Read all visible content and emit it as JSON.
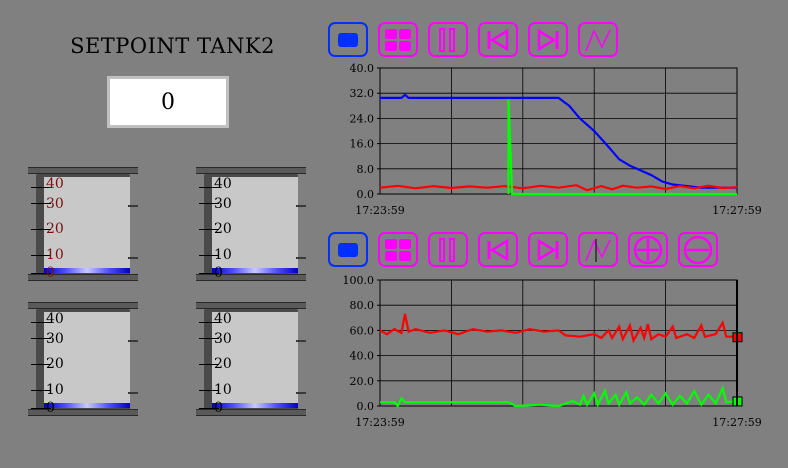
{
  "setpoint": {
    "title": "SETPOINT TANK2",
    "value": "0"
  },
  "tanks": [
    {
      "scale": [
        "40",
        "30",
        "20",
        "10",
        "0"
      ],
      "level": 0
    },
    {
      "scale": [
        "40",
        "30",
        "20",
        "10",
        "0"
      ],
      "level": 0
    },
    {
      "scale": [
        "40",
        "30",
        "20",
        "10",
        "0"
      ],
      "level": 0
    },
    {
      "scale": [
        "40",
        "30",
        "20",
        "10",
        "0"
      ],
      "level": 0
    }
  ],
  "toolbar1": {
    "buttons": [
      "stop-icon",
      "grid-icon",
      "pause-icon",
      "rewind-icon",
      "forward-icon",
      "wave-icon"
    ]
  },
  "toolbar2": {
    "buttons": [
      "stop-icon",
      "grid-icon",
      "pause-icon",
      "rewind-icon",
      "forward-icon",
      "cursor-wave-icon",
      "zoom-in-icon",
      "zoom-out-icon"
    ]
  },
  "colors": {
    "blue": "#0000ff",
    "red": "#ff0000",
    "green": "#00ff00",
    "magenta": "#ff00ff"
  },
  "chart_data": [
    {
      "type": "line",
      "ylim": [
        0,
        40
      ],
      "yticks": [
        "40.0",
        "32.0",
        "24.0",
        "16.0",
        "8.0",
        "0.0"
      ],
      "x_start": "17:23:59",
      "x_end": "17:27:59",
      "grid": true,
      "series": [
        {
          "color": "#0000ff",
          "points": [
            [
              0,
              30.5
            ],
            [
              6,
              30.5
            ],
            [
              7,
              31.5
            ],
            [
              8,
              30.5
            ],
            [
              50,
              30.5
            ],
            [
              53,
              28
            ],
            [
              56,
              24
            ],
            [
              60,
              20
            ],
            [
              64,
              15
            ],
            [
              67,
              11
            ],
            [
              70,
              9
            ],
            [
              73,
              7.5
            ],
            [
              76,
              6
            ],
            [
              79,
              4
            ],
            [
              82,
              3
            ],
            [
              86,
              2.5
            ],
            [
              90,
              2
            ],
            [
              100,
              2
            ]
          ]
        },
        {
          "color": "#ff0000",
          "points": [
            [
              0,
              2
            ],
            [
              5,
              2.6
            ],
            [
              10,
              1.8
            ],
            [
              15,
              2.5
            ],
            [
              20,
              1.9
            ],
            [
              25,
              2.4
            ],
            [
              30,
              2
            ],
            [
              35,
              2.5
            ],
            [
              40,
              1.8
            ],
            [
              45,
              2.6
            ],
            [
              50,
              2
            ],
            [
              55,
              2.8
            ],
            [
              58,
              1.2
            ],
            [
              62,
              2.5
            ],
            [
              65,
              1.5
            ],
            [
              68,
              2.6
            ],
            [
              72,
              2
            ],
            [
              76,
              2.4
            ],
            [
              80,
              1.6
            ],
            [
              84,
              2.5
            ],
            [
              88,
              1.8
            ],
            [
              92,
              2.6
            ],
            [
              96,
              1.9
            ],
            [
              100,
              2.2
            ]
          ]
        },
        {
          "color": "#00ff00",
          "points": [
            [
              36,
              0
            ],
            [
              36,
              30
            ],
            [
              37,
              0
            ],
            [
              100,
              0
            ]
          ]
        }
      ]
    },
    {
      "type": "line",
      "ylim": [
        0,
        100
      ],
      "yticks": [
        "100.0",
        "80.0",
        "60.0",
        "40.0",
        "20.0",
        "0.0"
      ],
      "x_start": "17:23:59",
      "x_end": "17:27:59",
      "grid": true,
      "series": [
        {
          "color": "#ff0000",
          "points": [
            [
              0,
              60
            ],
            [
              2,
              57
            ],
            [
              4,
              61
            ],
            [
              6,
              58
            ],
            [
              7,
              73
            ],
            [
              8,
              59
            ],
            [
              10,
              61
            ],
            [
              14,
              58
            ],
            [
              18,
              60
            ],
            [
              22,
              57
            ],
            [
              26,
              61
            ],
            [
              30,
              59
            ],
            [
              34,
              60
            ],
            [
              38,
              58
            ],
            [
              42,
              61
            ],
            [
              46,
              59
            ],
            [
              50,
              60
            ],
            [
              52,
              56
            ],
            [
              56,
              55
            ],
            [
              60,
              57
            ],
            [
              62,
              54
            ],
            [
              64,
              60
            ],
            [
              65,
              54
            ],
            [
              67,
              63
            ],
            [
              68,
              53
            ],
            [
              70,
              64
            ],
            [
              71,
              52
            ],
            [
              73,
              62
            ],
            [
              74,
              54
            ],
            [
              75,
              65
            ],
            [
              76,
              53
            ],
            [
              78,
              57
            ],
            [
              80,
              55
            ],
            [
              82,
              63
            ],
            [
              83,
              54
            ],
            [
              86,
              57
            ],
            [
              88,
              54
            ],
            [
              90,
              64
            ],
            [
              91,
              55
            ],
            [
              94,
              57
            ],
            [
              96,
              66
            ],
            [
              97,
              55
            ],
            [
              100,
              55
            ]
          ]
        },
        {
          "color": "#00ff00",
          "points": [
            [
              0,
              3
            ],
            [
              4,
              3
            ],
            [
              5,
              0
            ],
            [
              6,
              6
            ],
            [
              7,
              3
            ],
            [
              36,
              3
            ],
            [
              38,
              0
            ],
            [
              45,
              1
            ],
            [
              50,
              0
            ],
            [
              54,
              4
            ],
            [
              56,
              1
            ],
            [
              57,
              8
            ],
            [
              58,
              1
            ],
            [
              60,
              10
            ],
            [
              61,
              1
            ],
            [
              63,
              12
            ],
            [
              64,
              2
            ],
            [
              66,
              9
            ],
            [
              67,
              1
            ],
            [
              69,
              11
            ],
            [
              70,
              2
            ],
            [
              72,
              7
            ],
            [
              74,
              1
            ],
            [
              76,
              9
            ],
            [
              78,
              2
            ],
            [
              80,
              10
            ],
            [
              82,
              1
            ],
            [
              84,
              8
            ],
            [
              86,
              2
            ],
            [
              88,
              12
            ],
            [
              90,
              1
            ],
            [
              92,
              9
            ],
            [
              94,
              2
            ],
            [
              96,
              14
            ],
            [
              97,
              3
            ],
            [
              100,
              4
            ]
          ]
        }
      ]
    }
  ]
}
